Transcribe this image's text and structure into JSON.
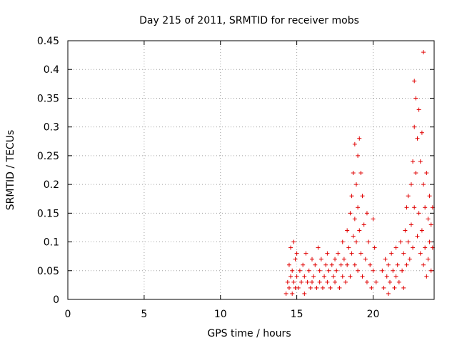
{
  "chart_data": {
    "type": "scatter",
    "title": "Day 215 of 2011, SRMTID for receiver mobs",
    "xlabel": "GPS time / hours",
    "ylabel": "SRMTID / TECUs",
    "xlim": [
      0,
      24
    ],
    "ylim": [
      0,
      0.45
    ],
    "x_ticks": [
      0,
      5,
      10,
      15,
      20
    ],
    "x_tick_labels": [
      "0",
      "5",
      "10",
      "15",
      "20"
    ],
    "y_ticks": [
      0,
      0.05,
      0.1,
      0.15,
      0.2,
      0.25,
      0.3,
      0.35,
      0.4,
      0.45
    ],
    "y_tick_labels": [
      "0",
      "0.05",
      "0.1",
      "0.15",
      "0.2",
      "0.25",
      "0.3",
      "0.35",
      "0.4",
      "0.45"
    ],
    "grid": true,
    "marker": "+",
    "marker_color": "#e00000",
    "series": [
      {
        "name": "SRMTID",
        "x": [
          14.3,
          14.4,
          14.5,
          14.5,
          14.6,
          14.6,
          14.7,
          14.7,
          14.8,
          14.8,
          14.9,
          14.9,
          15.0,
          15.0,
          15.1,
          15.2,
          15.3,
          15.4,
          15.5,
          15.5,
          15.6,
          15.7,
          15.8,
          15.9,
          16.0,
          16.0,
          16.1,
          16.2,
          16.3,
          16.4,
          16.5,
          16.5,
          16.6,
          16.7,
          16.8,
          16.9,
          17.0,
          17.0,
          17.1,
          17.2,
          17.3,
          17.4,
          17.5,
          17.5,
          17.6,
          17.7,
          17.8,
          17.9,
          18.0,
          18.0,
          18.1,
          18.2,
          18.3,
          18.3,
          18.4,
          18.5,
          18.5,
          18.6,
          18.6,
          18.7,
          18.7,
          18.8,
          18.8,
          18.8,
          18.9,
          18.9,
          19.0,
          19.0,
          19.0,
          19.1,
          19.1,
          19.2,
          19.2,
          19.3,
          19.3,
          19.4,
          19.5,
          19.6,
          19.6,
          19.7,
          19.8,
          19.9,
          20.0,
          20.0,
          20.1,
          20.2,
          20.6,
          20.7,
          20.8,
          20.9,
          21.0,
          21.0,
          21.1,
          21.2,
          21.3,
          21.4,
          21.5,
          21.5,
          21.6,
          21.7,
          21.8,
          21.9,
          22.0,
          22.0,
          22.1,
          22.2,
          22.2,
          22.3,
          22.3,
          22.4,
          22.5,
          22.5,
          22.6,
          22.6,
          22.7,
          22.7,
          22.7,
          22.8,
          22.8,
          22.9,
          22.9,
          23.0,
          23.0,
          23.1,
          23.1,
          23.2,
          23.2,
          23.3,
          23.3,
          23.3,
          23.4,
          23.4,
          23.5,
          23.5,
          23.6,
          23.6,
          23.7,
          23.7,
          23.8,
          23.8,
          23.9,
          23.9
        ],
        "y": [
          0.01,
          0.03,
          0.06,
          0.02,
          0.09,
          0.04,
          0.05,
          0.01,
          0.1,
          0.03,
          0.07,
          0.02,
          0.04,
          0.08,
          0.02,
          0.05,
          0.03,
          0.06,
          0.01,
          0.04,
          0.08,
          0.03,
          0.05,
          0.02,
          0.07,
          0.03,
          0.04,
          0.06,
          0.02,
          0.09,
          0.05,
          0.03,
          0.07,
          0.02,
          0.04,
          0.06,
          0.03,
          0.08,
          0.05,
          0.02,
          0.06,
          0.04,
          0.07,
          0.03,
          0.05,
          0.08,
          0.02,
          0.06,
          0.04,
          0.1,
          0.07,
          0.03,
          0.12,
          0.06,
          0.09,
          0.15,
          0.04,
          0.18,
          0.08,
          0.22,
          0.11,
          0.27,
          0.14,
          0.06,
          0.2,
          0.1,
          0.25,
          0.16,
          0.05,
          0.28,
          0.12,
          0.22,
          0.08,
          0.18,
          0.04,
          0.13,
          0.07,
          0.15,
          0.03,
          0.1,
          0.06,
          0.02,
          0.14,
          0.05,
          0.09,
          0.03,
          0.05,
          0.02,
          0.07,
          0.04,
          0.06,
          0.01,
          0.03,
          0.08,
          0.05,
          0.02,
          0.09,
          0.04,
          0.06,
          0.03,
          0.1,
          0.05,
          0.08,
          0.02,
          0.12,
          0.06,
          0.16,
          0.1,
          0.18,
          0.07,
          0.2,
          0.13,
          0.24,
          0.09,
          0.3,
          0.16,
          0.38,
          0.35,
          0.22,
          0.28,
          0.11,
          0.33,
          0.15,
          0.24,
          0.08,
          0.29,
          0.12,
          0.2,
          0.06,
          0.43,
          0.16,
          0.09,
          0.22,
          0.04,
          0.14,
          0.07,
          0.18,
          0.1,
          0.13,
          0.05,
          0.16,
          0.09
        ]
      }
    ]
  }
}
